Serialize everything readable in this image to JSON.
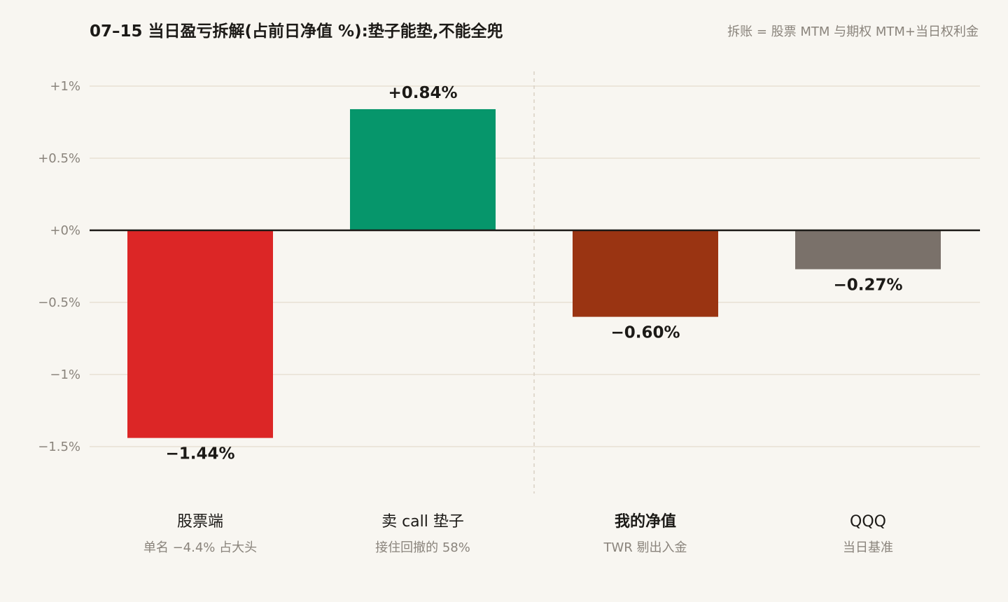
{
  "chart_data": {
    "type": "bar",
    "title": "07–15 当日盈亏拆解(占前日净值 %):垫子能垫,不能全兜",
    "note": "拆账 = 股票 MTM 与期权 MTM+当日权利金",
    "categories": [
      "股票端",
      "卖 call 垫子",
      "我的净值",
      "QQQ"
    ],
    "subtitles": [
      "单名 −4.4% 占大头",
      "接住回撤的 58%",
      "TWR 剔出入金",
      "当日基准"
    ],
    "values": [
      -1.44,
      0.84,
      -0.6,
      -0.27
    ],
    "value_labels": [
      "−1.44%",
      "+0.84%",
      "−0.60%",
      "−0.27%"
    ],
    "colors": [
      "#dc2626",
      "#06966b",
      "#9a3412",
      "#7a716a"
    ],
    "emphasized_category": "我的净值",
    "ylim": [
      -1.85,
      1.1
    ],
    "y_ticks": [
      1,
      0.5,
      0,
      -0.5,
      -1,
      -1.5
    ],
    "y_tick_labels": [
      "+1%",
      "+0.5%",
      "+0%",
      "−0.5%",
      "−1%",
      "−1.5%"
    ],
    "grid": true,
    "divider_after_index": 1
  }
}
